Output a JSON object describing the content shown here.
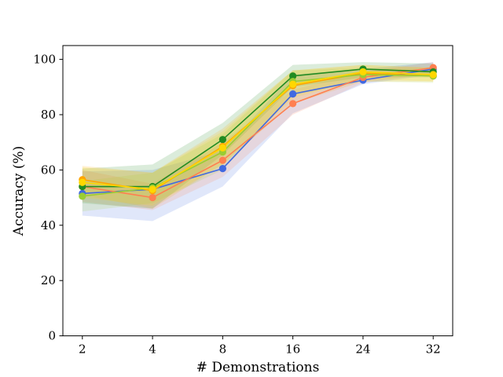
{
  "chart_data": {
    "type": "line",
    "title": "",
    "xlabel": "# Demonstrations",
    "ylabel": "Accuracy (%)",
    "categories": [
      "2",
      "4",
      "8",
      "16",
      "24",
      "32"
    ],
    "ylim": [
      0,
      105
    ],
    "yticks": [
      0,
      20,
      40,
      60,
      80,
      100
    ],
    "grid": false,
    "legend": "none",
    "series": [
      {
        "name": "blue",
        "color": "#4169E1",
        "values": [
          51.5,
          53.0,
          60.5,
          87.5,
          92.5,
          96.5
        ],
        "lower": [
          43.5,
          41.5,
          54.0,
          80.5,
          91.0,
          94.5
        ],
        "upper": [
          59.5,
          60.0,
          67.0,
          94.5,
          96.5,
          99.0
        ]
      },
      {
        "name": "coral",
        "color": "#FF7F50",
        "values": [
          54.0,
          50.0,
          63.5,
          84.0,
          93.5,
          97.0
        ],
        "lower": [
          48.5,
          45.5,
          57.5,
          80.0,
          91.5,
          95.0
        ],
        "upper": [
          60.0,
          55.0,
          70.0,
          89.0,
          95.5,
          99.0
        ]
      },
      {
        "name": "green",
        "color": "#228B22",
        "values": [
          54.0,
          54.0,
          71.0,
          94.0,
          96.5,
          95.5
        ],
        "lower": [
          48.0,
          46.0,
          65.5,
          90.0,
          93.5,
          93.5
        ],
        "upper": [
          60.5,
          62.0,
          77.0,
          98.0,
          99.0,
          98.5
        ]
      },
      {
        "name": "orange",
        "color": "#FFA500",
        "values": [
          56.5,
          52.5,
          68.5,
          90.5,
          95.0,
          94.0
        ],
        "lower": [
          51.0,
          46.0,
          62.0,
          84.0,
          92.0,
          92.0
        ],
        "upper": [
          61.5,
          59.0,
          75.0,
          96.0,
          98.0,
          97.0
        ]
      },
      {
        "name": "yellowgreen",
        "color": "#9ACD32",
        "values": [
          50.5,
          53.5,
          66.5,
          92.0,
          94.5,
          94.0
        ],
        "lower": [
          45.0,
          48.0,
          60.0,
          87.0,
          92.0,
          91.5
        ],
        "upper": [
          56.0,
          59.0,
          73.0,
          96.0,
          97.0,
          96.5
        ]
      },
      {
        "name": "gold",
        "color": "#FFD700",
        "values": [
          55.5,
          53.0,
          68.0,
          91.0,
          95.5,
          94.5
        ],
        "lower": [
          50.0,
          47.0,
          62.0,
          86.0,
          93.0,
          92.0
        ],
        "upper": [
          61.0,
          59.0,
          74.0,
          96.0,
          98.0,
          97.0
        ]
      }
    ]
  }
}
